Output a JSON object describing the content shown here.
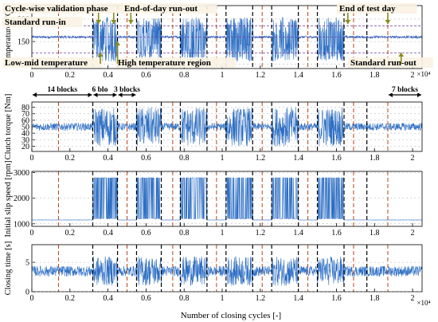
{
  "colors": {
    "signal": "#2e6fc4",
    "signal_dark": "#1f3f9a",
    "reference": "#6b3fa0",
    "block_line": "#000000",
    "sector_line": "#b5451b",
    "grid": "#9a9a9a",
    "arrow": "#8a8a1a",
    "label_bg": "#fbf3e4"
  },
  "chart_data": {
    "type": "line",
    "xlabel": "Number of closing cycles [-]",
    "x_multiplier": "×10⁴",
    "xlim": [
      0,
      2.05
    ],
    "x_ticks": [
      0,
      0.2,
      0.4,
      0.6,
      0.8,
      1,
      1.2,
      1.4,
      1.6,
      1.8,
      2
    ],
    "x_tick_labels": [
      "0",
      "0.2",
      "0.4",
      "0.6",
      "0.8",
      "1",
      "1.2",
      "1.4",
      "1.6",
      "1.8",
      "2"
    ],
    "block_boundaries": [
      0.32,
      0.45,
      0.55,
      0.68,
      0.78,
      0.92,
      1.02,
      1.16,
      1.26,
      1.4,
      1.5,
      1.64,
      1.76
    ],
    "sector_boundaries": [
      0.14,
      0.5,
      0.74,
      0.97,
      1.21,
      1.45,
      1.69,
      1.87
    ],
    "standard_runin_end": 0.32,
    "standard_runout_start": 1.87,
    "subplots": [
      {
        "id": "temperature",
        "ylabel": "Temperature [°C]",
        "ylim": [
          90,
          230
        ],
        "y_ticks": [
          100,
          150,
          200
        ],
        "y_tick_labels": [
          "100",
          "150",
          "200"
        ],
        "reference_lines": [
          125,
          160,
          185
        ]
      },
      {
        "id": "torque",
        "ylabel": "Clutch torque [Nm]",
        "ylim": [
          12,
          88
        ],
        "y_ticks": [
          20,
          30,
          40,
          50,
          60,
          70,
          80
        ],
        "y_tick_labels": [
          "20",
          "30",
          "40",
          "50",
          "60",
          "70",
          "80"
        ],
        "reference_lines": []
      },
      {
        "id": "slip_speed",
        "ylabel": "Initial slip speed [rpm]",
        "ylim": [
          900,
          3050
        ],
        "y_ticks": [
          1000,
          2000,
          3000
        ],
        "y_tick_labels": [
          "1000",
          "2000",
          "3000"
        ],
        "reference_lines": []
      },
      {
        "id": "closing_time",
        "ylabel": "Closing time [s]",
        "ylim": [
          0,
          8
        ],
        "y_ticks": [
          0,
          5
        ],
        "y_tick_labels": [
          "0",
          "5"
        ],
        "reference_lines": []
      }
    ],
    "annotations": [
      {
        "id": "cycle-wise-validation",
        "text": "Cycle-wise validation phase",
        "x": 0.4
      },
      {
        "id": "standard-run-in",
        "text": "Standard run-in",
        "x": 0.17
      },
      {
        "id": "low-mid-temperature",
        "text": "Low-mid temperature",
        "x": 0.35
      },
      {
        "id": "high-temperature-region",
        "text": "High temperature region",
        "x": 0.43
      },
      {
        "id": "end-of-day-run-out",
        "text": "End-of-day run-out",
        "x": 0.5
      },
      {
        "id": "end-of-test-day",
        "text": "End of test day",
        "x": 1.66
      },
      {
        "id": "standard-run-out",
        "text": "Standard run-out",
        "x": 1.86
      }
    ],
    "block_counts": [
      {
        "id": "blocks-14",
        "text": "14 blocks",
        "x_start": 0.0,
        "x_end": 0.32
      },
      {
        "id": "blocks-6a",
        "text": "6 blocks",
        "x_start": 0.32,
        "x_end": 0.45
      },
      {
        "id": "blocks-3",
        "text": "3 blocks",
        "x_start": 0.45,
        "x_end": 0.55
      },
      {
        "id": "blocks-7",
        "text": "7 blocks",
        "x_start": 1.87,
        "x_end": 2.05
      }
    ]
  }
}
